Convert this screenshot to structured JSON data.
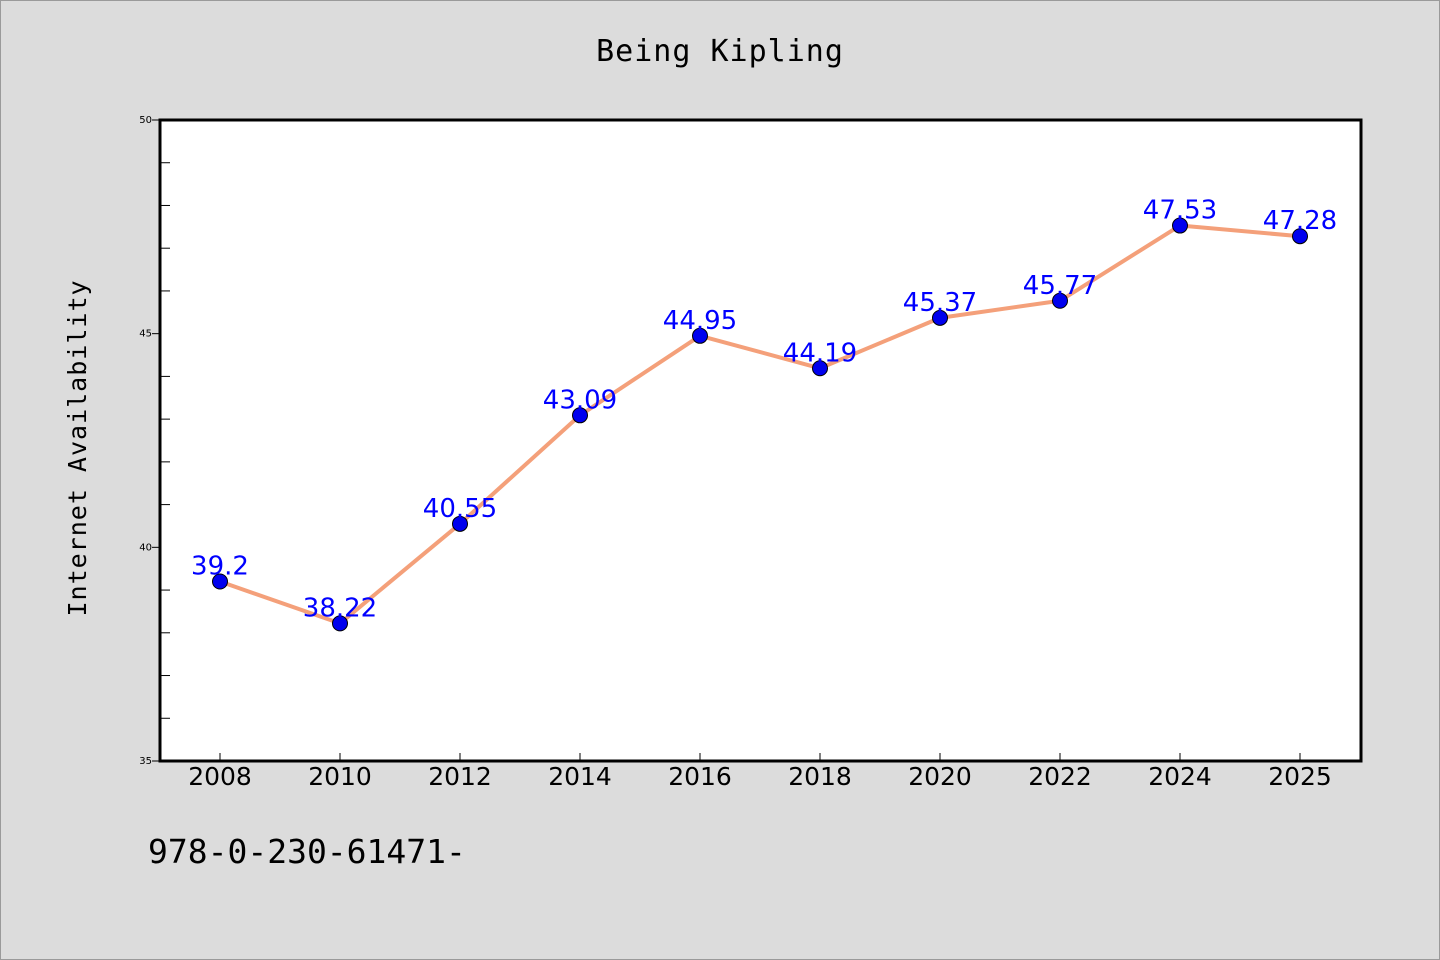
{
  "chart_data": {
    "type": "line",
    "title": "Being Kipling",
    "xlabel": "",
    "ylabel": "Internet Availability",
    "categories": [
      "2008",
      "2010",
      "2012",
      "2014",
      "2016",
      "2018",
      "2020",
      "2022",
      "2024",
      "2025"
    ],
    "series": [
      {
        "values": [
          39.2,
          38.22,
          40.55,
          43.09,
          44.95,
          44.19,
          45.37,
          45.77,
          47.53,
          47.28
        ],
        "data_labels": [
          "39.2",
          "38.22",
          "40.55",
          "43.09",
          "44.95",
          "44.19",
          "45.37",
          "45.77",
          "47.53",
          "47.28"
        ]
      }
    ],
    "ylim": [
      35,
      50
    ],
    "y_ticks": [
      "35",
      "40",
      "45",
      "50"
    ],
    "grid": false,
    "legend": "none",
    "line_color": "#f4a07a",
    "marker_color": "#0000ee",
    "label_color": "#0000ff",
    "background_color": "#dcdcdc",
    "plot_background_color": "#ffffff"
  },
  "footer": {
    "code": "978-0-230-61471-"
  }
}
